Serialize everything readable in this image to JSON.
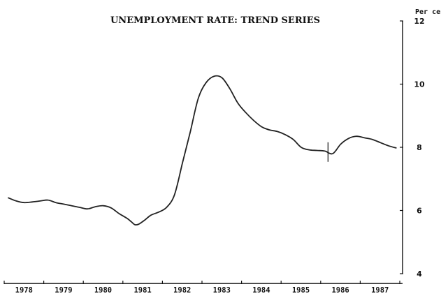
{
  "chart_data": {
    "type": "line",
    "title": "UNEMPLOYMENT RATE: TREND SERIES",
    "ylabel": "Per cent",
    "ylim": [
      4,
      12
    ],
    "yticks": [
      4,
      6,
      8,
      10,
      12
    ],
    "xlim": [
      1978,
      1988.3
    ],
    "categories": [
      "1978",
      "1979",
      "1980",
      "1981",
      "1982",
      "1983",
      "1984",
      "1985",
      "1986",
      "1987"
    ],
    "grid": false,
    "series": [
      {
        "x": [
          1978.0,
          1978.2,
          1978.4,
          1978.6,
          1978.8,
          1979.0,
          1979.2,
          1979.4,
          1979.6,
          1979.8,
          1980.0,
          1980.2,
          1980.4,
          1980.6,
          1980.8,
          1981.0,
          1981.1,
          1981.2,
          1981.3,
          1981.45,
          1981.6,
          1981.8,
          1982.0,
          1982.2,
          1982.4,
          1982.6,
          1982.8,
          1983.0,
          1983.2,
          1983.4,
          1983.6,
          1983.8,
          1984.0,
          1984.2,
          1984.4,
          1984.6,
          1984.8,
          1985.0,
          1985.2,
          1985.4,
          1985.6,
          1985.8,
          1986.0,
          1986.2,
          1986.4,
          1986.6,
          1986.8,
          1987.0,
          1987.2,
          1987.4,
          1987.6,
          1987.8
        ],
        "values": [
          6.4,
          6.3,
          6.25,
          6.27,
          6.3,
          6.33,
          6.25,
          6.2,
          6.15,
          6.1,
          6.05,
          6.12,
          6.15,
          6.08,
          5.9,
          5.75,
          5.65,
          5.55,
          5.57,
          5.7,
          5.85,
          5.95,
          6.1,
          6.5,
          7.5,
          8.5,
          9.55,
          10.05,
          10.25,
          10.2,
          9.85,
          9.4,
          9.1,
          8.85,
          8.65,
          8.55,
          8.5,
          8.4,
          8.25,
          8.0,
          7.92,
          7.9,
          7.88,
          7.8,
          8.1,
          8.28,
          8.35,
          8.3,
          8.25,
          8.15,
          8.05,
          7.98
        ]
      }
    ],
    "annotations": [
      {
        "type": "vertical-marker",
        "x": 1986.08,
        "y": 7.85
      }
    ]
  }
}
